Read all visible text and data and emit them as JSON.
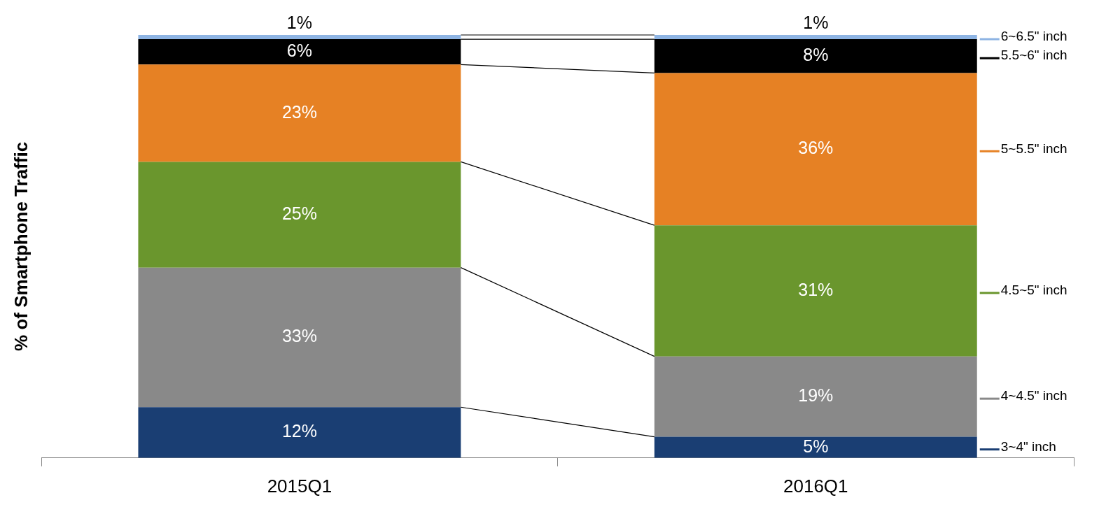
{
  "chart_data": {
    "type": "bar",
    "stacked": true,
    "ylabel": "% of Smartphone Traffic",
    "categories": [
      "2015Q1",
      "2016Q1"
    ],
    "ylim": [
      0,
      100
    ],
    "tick_labels": "x",
    "legend": "right",
    "grid": false,
    "series": [
      {
        "name": "3~4\" inch",
        "color": "#1a3e73",
        "values": [
          12,
          5
        ],
        "value_labels": [
          "12%",
          "5%"
        ]
      },
      {
        "name": "4~4.5\" inch",
        "color": "#898989",
        "values": [
          33,
          19
        ],
        "value_labels": [
          "33%",
          "19%"
        ]
      },
      {
        "name": "4.5~5\" inch",
        "color": "#6a962d",
        "values": [
          25,
          31
        ],
        "value_labels": [
          "25%",
          "31%"
        ]
      },
      {
        "name": "5~5.5\" inch",
        "color": "#e68124",
        "values": [
          23,
          36
        ],
        "value_labels": [
          "23%",
          "36%"
        ]
      },
      {
        "name": "5.5~6\" inch",
        "color": "#000000",
        "values": [
          6,
          8
        ],
        "value_labels": [
          "6%",
          "8%"
        ]
      },
      {
        "name": "6~6.5\" inch",
        "color": "#8eb4e3",
        "values": [
          1,
          1
        ],
        "value_labels": [
          "1%",
          "1%"
        ]
      }
    ]
  }
}
